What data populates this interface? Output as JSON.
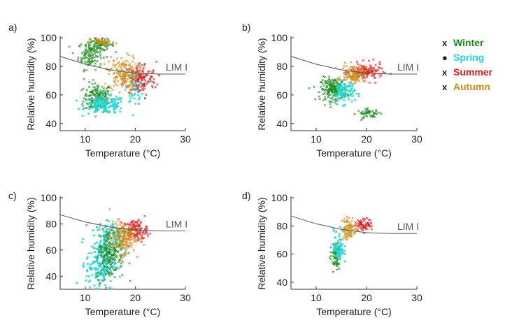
{
  "chart_data": [
    {
      "panel": "a)",
      "type": "scatter",
      "xlabel": "Temperature (°C)",
      "ylabel": "Relative humidity (%)",
      "xlim": [
        5,
        30
      ],
      "ylim": [
        35,
        100
      ],
      "xticks": [
        10,
        20,
        30
      ],
      "yticks": [
        40,
        60,
        80,
        100
      ],
      "limit_curve": {
        "label": "LIM I",
        "x": [
          5,
          10,
          15,
          20,
          25,
          30
        ],
        "y": [
          87,
          81.5,
          77.5,
          75.2,
          74.6,
          74.6
        ]
      },
      "series": [
        {
          "name": "Winter",
          "clusters": [
            {
              "cx": 12.5,
              "cy": 58,
              "sx": 1.4,
              "sy": 5,
              "n": 170
            },
            {
              "cx": 11,
              "cy": 88,
              "sx": 1.2,
              "sy": 5,
              "n": 110
            },
            {
              "cx": 13,
              "cy": 95,
              "sx": 1.4,
              "sy": 2,
              "n": 80
            }
          ]
        },
        {
          "name": "Spring",
          "clusters": [
            {
              "cx": 14,
              "cy": 53,
              "sx": 2,
              "sy": 3,
              "n": 140
            },
            {
              "cx": 20,
              "cy": 66,
              "sx": 0.8,
              "sy": 5,
              "n": 60
            }
          ]
        },
        {
          "name": "Summer",
          "clusters": [
            {
              "cx": 21,
              "cy": 71,
              "sx": 1.6,
              "sy": 6,
              "n": 140
            }
          ]
        },
        {
          "name": "Autumn",
          "clusters": [
            {
              "cx": 17.5,
              "cy": 75,
              "sx": 1.4,
              "sy": 6,
              "n": 160
            },
            {
              "cx": 13.5,
              "cy": 97,
              "sx": 1.2,
              "sy": 1,
              "n": 40
            }
          ]
        }
      ]
    },
    {
      "panel": "b)",
      "type": "scatter",
      "xlabel": "Temperature (°C)",
      "ylabel": "Relative humidity (%)",
      "xlim": [
        5,
        30
      ],
      "ylim": [
        35,
        100
      ],
      "xticks": [
        10,
        20,
        30
      ],
      "yticks": [
        40,
        60,
        80,
        100
      ],
      "limit_curve": {
        "label": "LIM I",
        "x": [
          5,
          10,
          15,
          20,
          25,
          30
        ],
        "y": [
          87,
          81.5,
          77.5,
          75.2,
          74.6,
          74.6
        ]
      },
      "series": [
        {
          "name": "Winter",
          "clusters": [
            {
              "cx": 13.5,
              "cy": 64,
              "sx": 1.3,
              "sy": 4,
              "n": 200
            },
            {
              "cx": 20.5,
              "cy": 47,
              "sx": 1.2,
              "sy": 1.5,
              "n": 50
            }
          ]
        },
        {
          "name": "Spring",
          "clusters": [
            {
              "cx": 15.5,
              "cy": 62,
              "sx": 1.1,
              "sy": 4,
              "n": 90
            }
          ]
        },
        {
          "name": "Summer",
          "clusters": [
            {
              "cx": 20,
              "cy": 76,
              "sx": 1.6,
              "sy": 3,
              "n": 130
            }
          ]
        },
        {
          "name": "Autumn",
          "clusters": [
            {
              "cx": 17.5,
              "cy": 75,
              "sx": 1.2,
              "sy": 3,
              "n": 110
            }
          ]
        }
      ]
    },
    {
      "panel": "c)",
      "type": "scatter",
      "xlabel": "Temperature (°C)",
      "ylabel": "Relative humidity (%)",
      "xlim": [
        5,
        30
      ],
      "ylim": [
        30,
        100
      ],
      "xticks": [
        10,
        20,
        30
      ],
      "yticks": [
        40,
        60,
        80,
        100
      ],
      "limit_curve": {
        "label": "LIM I",
        "x": [
          5,
          10,
          15,
          20,
          25,
          30
        ],
        "y": [
          87,
          81.5,
          77.5,
          75.2,
          74.6,
          74.6
        ]
      },
      "series": [
        {
          "name": "Spring",
          "clusters": [
            {
              "cx": 13,
              "cy": 50,
              "sx": 1.4,
              "sy": 10,
              "n": 200
            },
            {
              "cx": 15.5,
              "cy": 72,
              "sx": 1.5,
              "sy": 6,
              "n": 80
            }
          ]
        },
        {
          "name": "Winter",
          "clusters": [
            {
              "cx": 15,
              "cy": 58,
              "sx": 1.4,
              "sy": 10,
              "n": 200
            }
          ]
        },
        {
          "name": "Summer",
          "clusters": [
            {
              "cx": 20,
              "cy": 75,
              "sx": 1.2,
              "sy": 4,
              "n": 130
            }
          ]
        },
        {
          "name": "Autumn",
          "clusters": [
            {
              "cx": 17.5,
              "cy": 70,
              "sx": 1.3,
              "sy": 6,
              "n": 160
            }
          ]
        }
      ]
    },
    {
      "panel": "d)",
      "type": "scatter",
      "xlabel": "Temperature (°C)",
      "ylabel": "Relative humidity (%)",
      "xlim": [
        5,
        30
      ],
      "ylim": [
        35,
        100
      ],
      "xticks": [
        10,
        20,
        30
      ],
      "yticks": [
        40,
        60,
        80,
        100
      ],
      "limit_curve": {
        "label": "LIM I",
        "x": [
          5,
          10,
          15,
          20,
          25,
          30
        ],
        "y": [
          87,
          81.5,
          77.5,
          75.2,
          74.6,
          74.6
        ]
      },
      "series": [
        {
          "name": "Winter",
          "clusters": [
            {
              "cx": 13.8,
              "cy": 58,
              "sx": 0.5,
              "sy": 5,
              "n": 70
            }
          ]
        },
        {
          "name": "Spring",
          "clusters": [
            {
              "cx": 14.5,
              "cy": 65,
              "sx": 0.5,
              "sy": 6,
              "n": 70
            }
          ]
        },
        {
          "name": "Summer",
          "clusters": [
            {
              "cx": 19.5,
              "cy": 81,
              "sx": 0.9,
              "sy": 2,
              "n": 70
            }
          ]
        },
        {
          "name": "Autumn",
          "clusters": [
            {
              "cx": 16.5,
              "cy": 78,
              "sx": 0.7,
              "sy": 4,
              "n": 80
            }
          ]
        }
      ]
    }
  ],
  "legend": [
    {
      "marker": "x",
      "label": "Winter",
      "color": "#1a8a1a"
    },
    {
      "marker": "●",
      "label": "Spring",
      "color": "#22d4d4"
    },
    {
      "marker": "x",
      "label": "Summer",
      "color": "#e01c1c"
    },
    {
      "marker": "x",
      "label": "Autumn",
      "color": "#d08a12"
    }
  ],
  "colors": {
    "Winter": "#1a8a1a",
    "Spring": "#22d4d4",
    "Summer": "#e01c1c",
    "Autumn": "#d08a12",
    "limit": "#555555"
  }
}
